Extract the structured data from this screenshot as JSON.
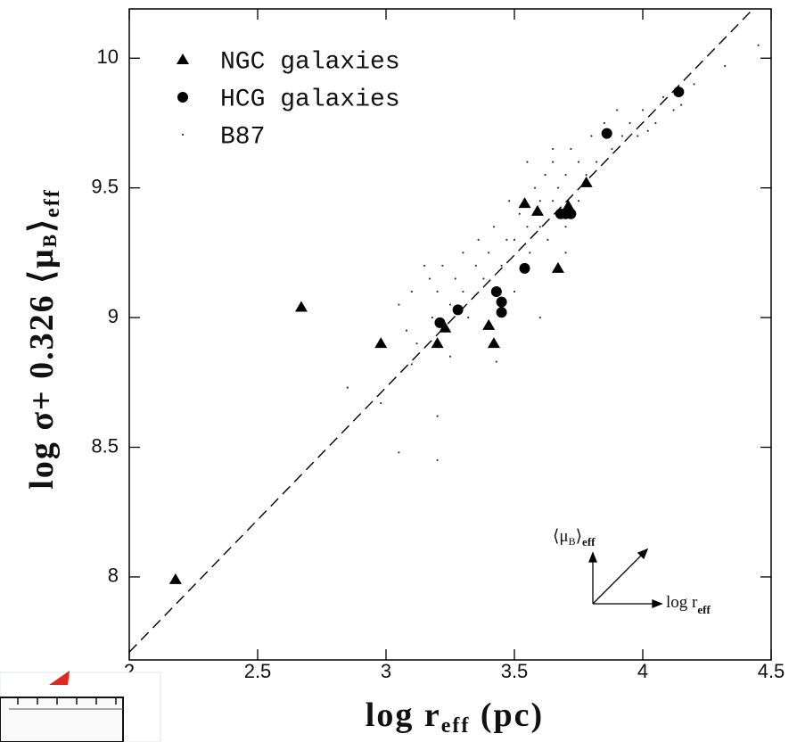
{
  "chart_data": {
    "type": "scatter",
    "xlim": [
      2,
      4.5
    ],
    "ylim": [
      7.68,
      10.19
    ],
    "xticks": [
      2,
      2.5,
      3,
      3.5,
      4,
      4.5
    ],
    "yticks": [
      8,
      8.5,
      9,
      9.5,
      10
    ],
    "xlabel": {
      "main": "log r",
      "subscript": "eff",
      "rest": " (pc)"
    },
    "ylabel": {
      "main": "log σ+ 0.326 ⟨μ",
      "sub": "B",
      "close": "⟩",
      "subscript": "eff"
    },
    "legend": "upper left",
    "series": [
      {
        "name": "NGC galaxies",
        "marker": "triangle",
        "color": "#000000",
        "x": [
          2.18,
          2.67,
          2.98,
          3.2,
          3.23,
          3.4,
          3.42,
          3.54,
          3.59,
          3.67,
          3.71,
          3.78
        ],
        "values": [
          7.99,
          9.04,
          8.9,
          8.9,
          8.96,
          8.97,
          8.9,
          9.44,
          9.41,
          9.19,
          9.43,
          9.52
        ]
      },
      {
        "name": "HCG galaxies",
        "marker": "circle",
        "color": "#000000",
        "x": [
          3.21,
          3.28,
          3.43,
          3.45,
          3.45,
          3.54,
          3.68,
          3.7,
          3.72,
          3.86,
          4.14
        ],
        "values": [
          8.98,
          9.03,
          9.1,
          9.06,
          9.02,
          9.19,
          9.4,
          9.4,
          9.4,
          9.71,
          9.87
        ]
      },
      {
        "name": "B87",
        "marker": "dot",
        "color": "#333333",
        "x": [
          3.05,
          3.08,
          3.1,
          3.12,
          3.15,
          3.17,
          3.18,
          3.2,
          3.22,
          3.25,
          3.27,
          3.3,
          3.3,
          3.32,
          3.35,
          3.36,
          3.38,
          3.4,
          3.42,
          3.45,
          3.47,
          3.48,
          3.5,
          3.5,
          3.52,
          3.55,
          3.56,
          3.58,
          3.6,
          3.6,
          3.62,
          3.63,
          3.65,
          3.65,
          3.67,
          3.7,
          3.7,
          3.72,
          3.75,
          3.75,
          3.78,
          3.8,
          3.82,
          3.85,
          3.88,
          3.9,
          3.92,
          3.95,
          3.98,
          4.0,
          4.02,
          4.05,
          4.08,
          4.12,
          4.15,
          4.2,
          4.32,
          4.45,
          3.2,
          3.2,
          3.05,
          2.98,
          2.85,
          3.1,
          3.25,
          3.43,
          3.6,
          3.7,
          3.55,
          3.65
        ],
        "values": [
          9.05,
          8.95,
          9.1,
          8.9,
          9.2,
          9.15,
          9.0,
          9.1,
          9.2,
          9.05,
          9.15,
          9.1,
          9.25,
          9.0,
          9.2,
          9.3,
          9.15,
          9.25,
          9.35,
          9.2,
          9.3,
          9.45,
          9.3,
          9.1,
          9.4,
          9.35,
          9.25,
          9.5,
          9.35,
          9.45,
          9.55,
          9.3,
          9.45,
          9.6,
          9.5,
          9.55,
          9.35,
          9.65,
          9.45,
          9.6,
          9.55,
          9.7,
          9.6,
          9.75,
          9.65,
          9.8,
          9.7,
          9.75,
          9.7,
          9.8,
          9.72,
          9.75,
          9.85,
          9.8,
          9.82,
          9.9,
          9.97,
          10.05,
          8.62,
          8.45,
          8.48,
          8.67,
          8.73,
          8.82,
          8.85,
          8.83,
          9.0,
          9.25,
          9.6,
          9.65
        ]
      }
    ],
    "fit_line": {
      "style": "dashed",
      "x": [
        2,
        4.43
      ],
      "y": [
        7.71,
        10.19
      ]
    },
    "inset": {
      "y_label": {
        "main": "⟨μ",
        "sub": "B",
        "close": "⟩",
        "subscript": "eff"
      },
      "x_label": {
        "main": "log r",
        "subscript": "eff"
      }
    }
  }
}
